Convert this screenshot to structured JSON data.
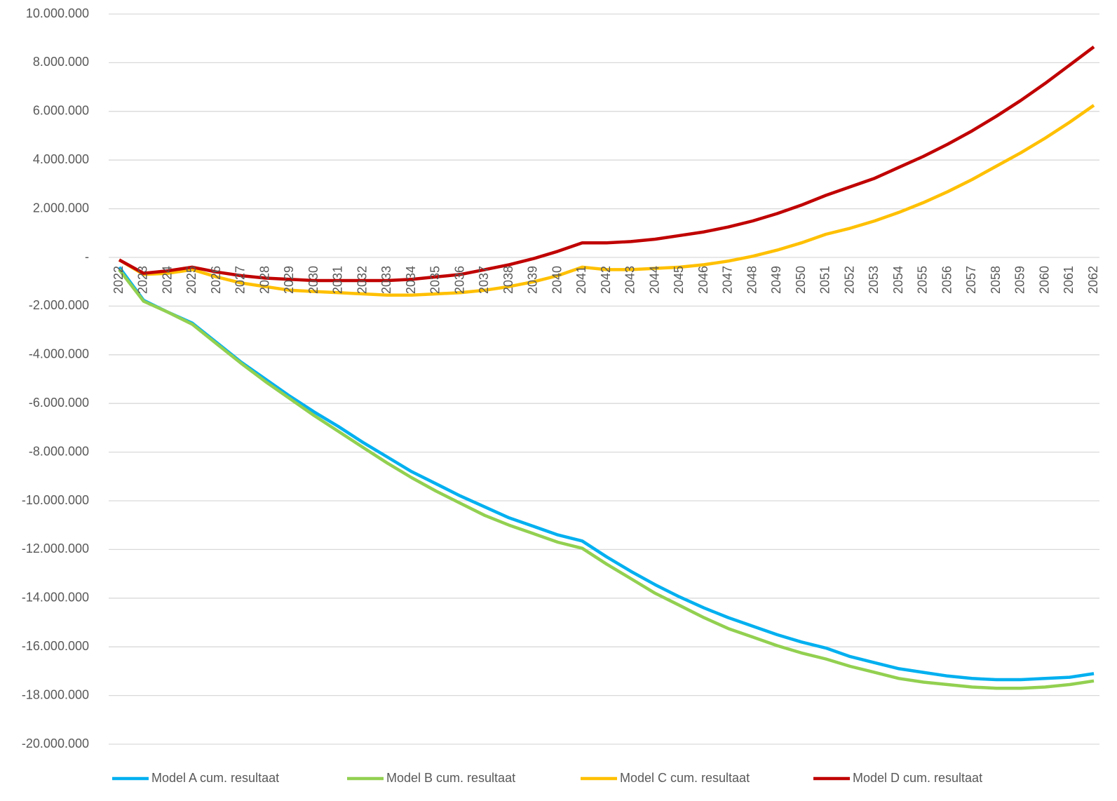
{
  "chart_data": {
    "type": "line",
    "categories": [
      "2022",
      "2023",
      "2024",
      "2025",
      "2026",
      "2027",
      "2028",
      "2029",
      "2030",
      "2031",
      "2032",
      "2033",
      "2034",
      "2035",
      "2036",
      "2037",
      "2038",
      "2039",
      "2040",
      "2041",
      "2042",
      "2043",
      "2044",
      "2045",
      "2046",
      "2047",
      "2048",
      "2049",
      "2050",
      "2051",
      "2052",
      "2053",
      "2054",
      "2055",
      "2056",
      "2057",
      "2058",
      "2059",
      "2060",
      "2061",
      "2062"
    ],
    "series": [
      {
        "name": "Model A cum. resultaat",
        "color": "#00b0f0",
        "values": [
          -400000,
          -1760000,
          -2250000,
          -2700000,
          -3500000,
          -4300000,
          -5000000,
          -5700000,
          -6350000,
          -6950000,
          -7600000,
          -8200000,
          -8800000,
          -9300000,
          -9800000,
          -10250000,
          -10700000,
          -11050000,
          -11400000,
          -11650000,
          -12300000,
          -12900000,
          -13450000,
          -13950000,
          -14400000,
          -14800000,
          -15150000,
          -15500000,
          -15800000,
          -16050000,
          -16400000,
          -16650000,
          -16900000,
          -17050000,
          -17200000,
          -17300000,
          -17350000,
          -17350000,
          -17300000,
          -17250000,
          -17100000
        ]
      },
      {
        "name": "Model B cum. resultaat",
        "color": "#92d050",
        "values": [
          -500000,
          -1800000,
          -2250000,
          -2750000,
          -3550000,
          -4350000,
          -5100000,
          -5800000,
          -6500000,
          -7150000,
          -7800000,
          -8450000,
          -9050000,
          -9600000,
          -10100000,
          -10600000,
          -11000000,
          -11350000,
          -11700000,
          -11950000,
          -12600000,
          -13200000,
          -13800000,
          -14300000,
          -14800000,
          -15250000,
          -15600000,
          -15950000,
          -16250000,
          -16500000,
          -16800000,
          -17050000,
          -17300000,
          -17450000,
          -17550000,
          -17650000,
          -17700000,
          -17700000,
          -17650000,
          -17550000,
          -17400000
        ]
      },
      {
        "name": "Model C cum. resultaat",
        "color": "#ffc000",
        "values": [
          -100000,
          -700000,
          -650000,
          -500000,
          -800000,
          -1050000,
          -1200000,
          -1350000,
          -1400000,
          -1450000,
          -1500000,
          -1550000,
          -1550000,
          -1500000,
          -1450000,
          -1350000,
          -1200000,
          -1000000,
          -750000,
          -400000,
          -500000,
          -500000,
          -450000,
          -400000,
          -300000,
          -150000,
          50000,
          300000,
          600000,
          950000,
          1200000,
          1500000,
          1850000,
          2250000,
          2700000,
          3200000,
          3750000,
          4300000,
          4900000,
          5550000,
          6250000
        ]
      },
      {
        "name": "Model D cum. resultaat",
        "color": "#c00000",
        "values": [
          -100000,
          -650000,
          -550000,
          -400000,
          -600000,
          -750000,
          -850000,
          -900000,
          -950000,
          -950000,
          -950000,
          -950000,
          -900000,
          -800000,
          -700000,
          -500000,
          -300000,
          -50000,
          250000,
          600000,
          600000,
          650000,
          750000,
          900000,
          1050000,
          1250000,
          1500000,
          1800000,
          2150000,
          2550000,
          2900000,
          3250000,
          3700000,
          4150000,
          4650000,
          5200000,
          5800000,
          6450000,
          7150000,
          7900000,
          8650000
        ]
      }
    ],
    "ylim": [
      -20000000,
      10000000
    ],
    "yticks": [
      {
        "value": 10000000,
        "label": "10.000.000"
      },
      {
        "value": 8000000,
        "label": "8.000.000"
      },
      {
        "value": 6000000,
        "label": "6.000.000"
      },
      {
        "value": 4000000,
        "label": "4.000.000"
      },
      {
        "value": 2000000,
        "label": "2.000.000"
      },
      {
        "value": 0,
        "label": "-"
      },
      {
        "value": -2000000,
        "label": "-2.000.000"
      },
      {
        "value": -4000000,
        "label": "-4.000.000"
      },
      {
        "value": -6000000,
        "label": "-6.000.000"
      },
      {
        "value": -8000000,
        "label": "-8.000.000"
      },
      {
        "value": -10000000,
        "label": "-10.000.000"
      },
      {
        "value": -12000000,
        "label": "-12.000.000"
      },
      {
        "value": -14000000,
        "label": "-14.000.000"
      },
      {
        "value": -16000000,
        "label": "-16.000.000"
      },
      {
        "value": -18000000,
        "label": "-18.000.000"
      },
      {
        "value": -20000000,
        "label": "-20.000.000"
      }
    ],
    "grid": true,
    "legend": "bottom"
  }
}
